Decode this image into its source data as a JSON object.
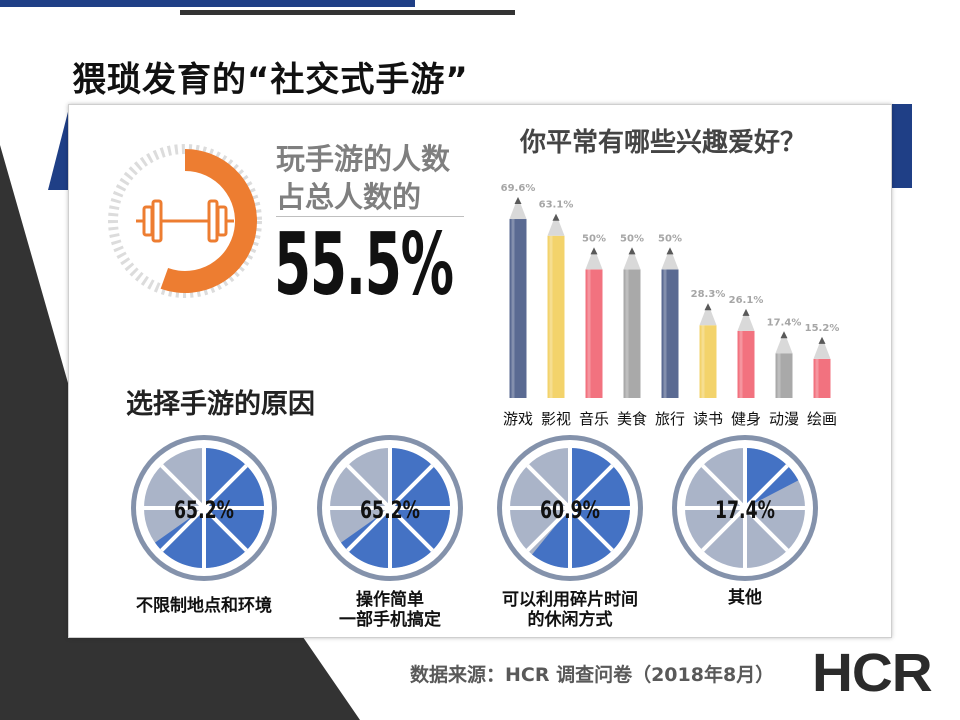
{
  "page": {
    "title": "猥琐发育的“社交式手游”",
    "source": "数据来源：HCR 调查问卷（2018年8月）",
    "logo": "HCR"
  },
  "colors": {
    "orange": "#ed7d31",
    "dark_navy": "#1f3f86",
    "dark_gray": "#333333",
    "wheel_blue": "#4472c4",
    "wheel_light": "#aab4c8",
    "wheel_rim": "#8492ab"
  },
  "icons": {
    "donut_center": "dumbbell-icon"
  },
  "chart_data": [
    {
      "type": "pie",
      "title": "",
      "text_line1": "玩手游的人数",
      "text_line2": "占总人数的",
      "value_label": "55.5%",
      "value": 55.5
    },
    {
      "type": "bar",
      "title": "你平常有哪些兴趣爱好？",
      "categories": [
        "游戏",
        "影视",
        "音乐",
        "美食",
        "旅行",
        "读书",
        "健身",
        "动漫",
        "绘画"
      ],
      "values": [
        69.6,
        63.1,
        50,
        50,
        50,
        28.3,
        26.1,
        17.4,
        15.2
      ],
      "value_labels": [
        "69.6%",
        "63.1%",
        "50%",
        "50%",
        "50%",
        "28.3%",
        "26.1%",
        "17.4%",
        "15.2%"
      ],
      "colors": [
        "#5a6a92",
        "#f3d36b",
        "#f2727f",
        "#a9a9a9",
        "#5a6a92",
        "#f3d36b",
        "#f2727f",
        "#a9a9a9",
        "#f2727f"
      ],
      "ylim": [
        0,
        70
      ]
    },
    {
      "type": "pie",
      "title": "选择手游的原因",
      "items": [
        {
          "label_lines": [
            "不限制地点和环境"
          ],
          "value": 65.2,
          "value_label": "65.2%"
        },
        {
          "label_lines": [
            "操作简单",
            "一部手机搞定"
          ],
          "value": 65.2,
          "value_label": "65.2%"
        },
        {
          "label_lines": [
            "可以利用碎片时间",
            "的休闲方式"
          ],
          "value": 60.9,
          "value_label": "60.9%"
        },
        {
          "label_lines": [
            "其他"
          ],
          "value": 17.4,
          "value_label": "17.4%"
        }
      ]
    }
  ]
}
